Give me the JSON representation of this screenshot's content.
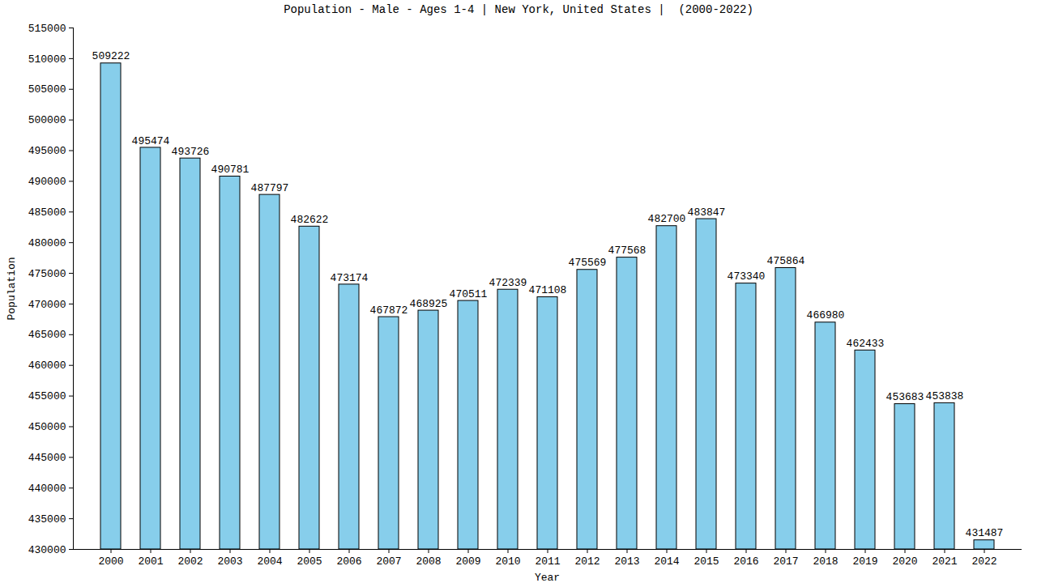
{
  "chart_data": {
    "type": "bar",
    "title": "Population - Male - Ages 1-4 | New York, United States |  (2000-2022)",
    "x_label": "Year",
    "y_label": "Population",
    "categories": [
      "2000",
      "2001",
      "2002",
      "2003",
      "2004",
      "2005",
      "2006",
      "2007",
      "2008",
      "2009",
      "2010",
      "2011",
      "2012",
      "2013",
      "2014",
      "2015",
      "2016",
      "2017",
      "2018",
      "2019",
      "2020",
      "2021",
      "2022"
    ],
    "values": [
      509222,
      495474,
      493726,
      490781,
      487797,
      482622,
      473174,
      467872,
      468925,
      470511,
      472339,
      471108,
      475569,
      477568,
      482700,
      483847,
      473340,
      475864,
      466980,
      462433,
      453683,
      453838,
      431487
    ],
    "color": "#87ceeb",
    "ylim": [
      430000,
      515000
    ],
    "yticks": [
      430000,
      435000,
      440000,
      445000,
      450000,
      455000,
      460000,
      465000,
      470000,
      475000,
      480000,
      485000,
      490000,
      495000,
      500000,
      505000,
      510000,
      515000
    ],
    "grid": false,
    "data_labels": true
  }
}
